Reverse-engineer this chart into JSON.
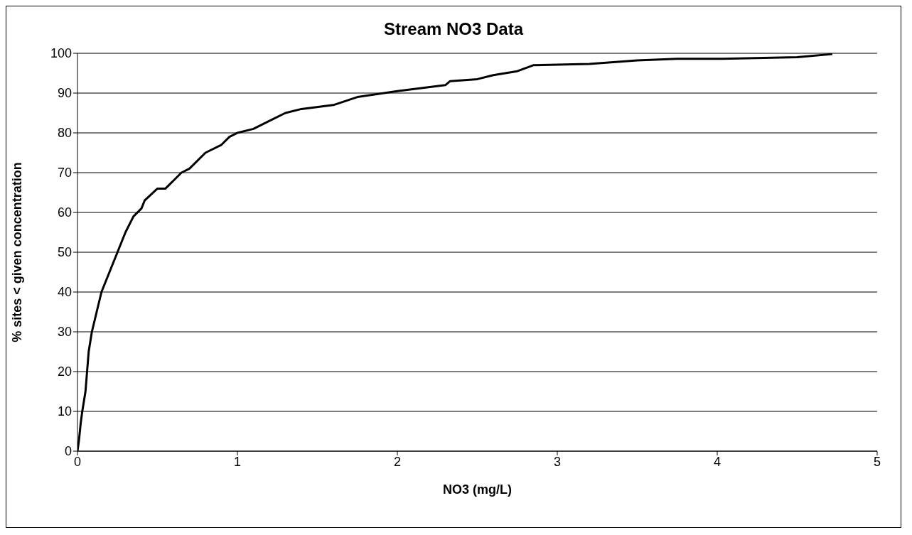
{
  "chart_data": {
    "type": "line",
    "title": "Stream NO3 Data",
    "xlabel": "NO3 (mg/L)",
    "ylabel": "% sites < given concentration",
    "x": [
      0,
      0.01,
      0.02,
      0.03,
      0.05,
      0.06,
      0.07,
      0.09,
      0.12,
      0.15,
      0.2,
      0.25,
      0.3,
      0.35,
      0.4,
      0.42,
      0.5,
      0.55,
      0.6,
      0.65,
      0.7,
      0.8,
      0.9,
      0.95,
      1.0,
      1.1,
      1.2,
      1.3,
      1.4,
      1.6,
      1.75,
      2.0,
      2.3,
      2.33,
      2.5,
      2.6,
      2.75,
      2.85,
      3.2,
      3.5,
      3.75,
      4.0,
      4.5,
      4.72
    ],
    "series": [
      {
        "color": "#000000",
        "values": [
          0,
          3,
          7,
          10,
          15,
          20,
          25,
          30,
          35,
          40,
          45,
          50,
          55,
          59,
          61,
          63,
          66,
          66,
          68,
          70,
          71,
          75,
          77,
          79,
          80,
          81,
          83,
          85,
          86,
          87,
          89,
          90.5,
          92,
          93,
          93.5,
          94.5,
          95.5,
          97,
          97.3,
          98.2,
          98.6,
          98.6,
          99,
          99.8
        ]
      }
    ],
    "xlim": [
      0,
      5
    ],
    "xticks": [
      0,
      1,
      2,
      3,
      4,
      5
    ],
    "ylim": [
      0,
      100
    ],
    "yticks": [
      0,
      10,
      20,
      30,
      40,
      50,
      60,
      70,
      80,
      90,
      100
    ],
    "grid": "y",
    "legend": false,
    "marker": "none",
    "line_style": "solid"
  }
}
